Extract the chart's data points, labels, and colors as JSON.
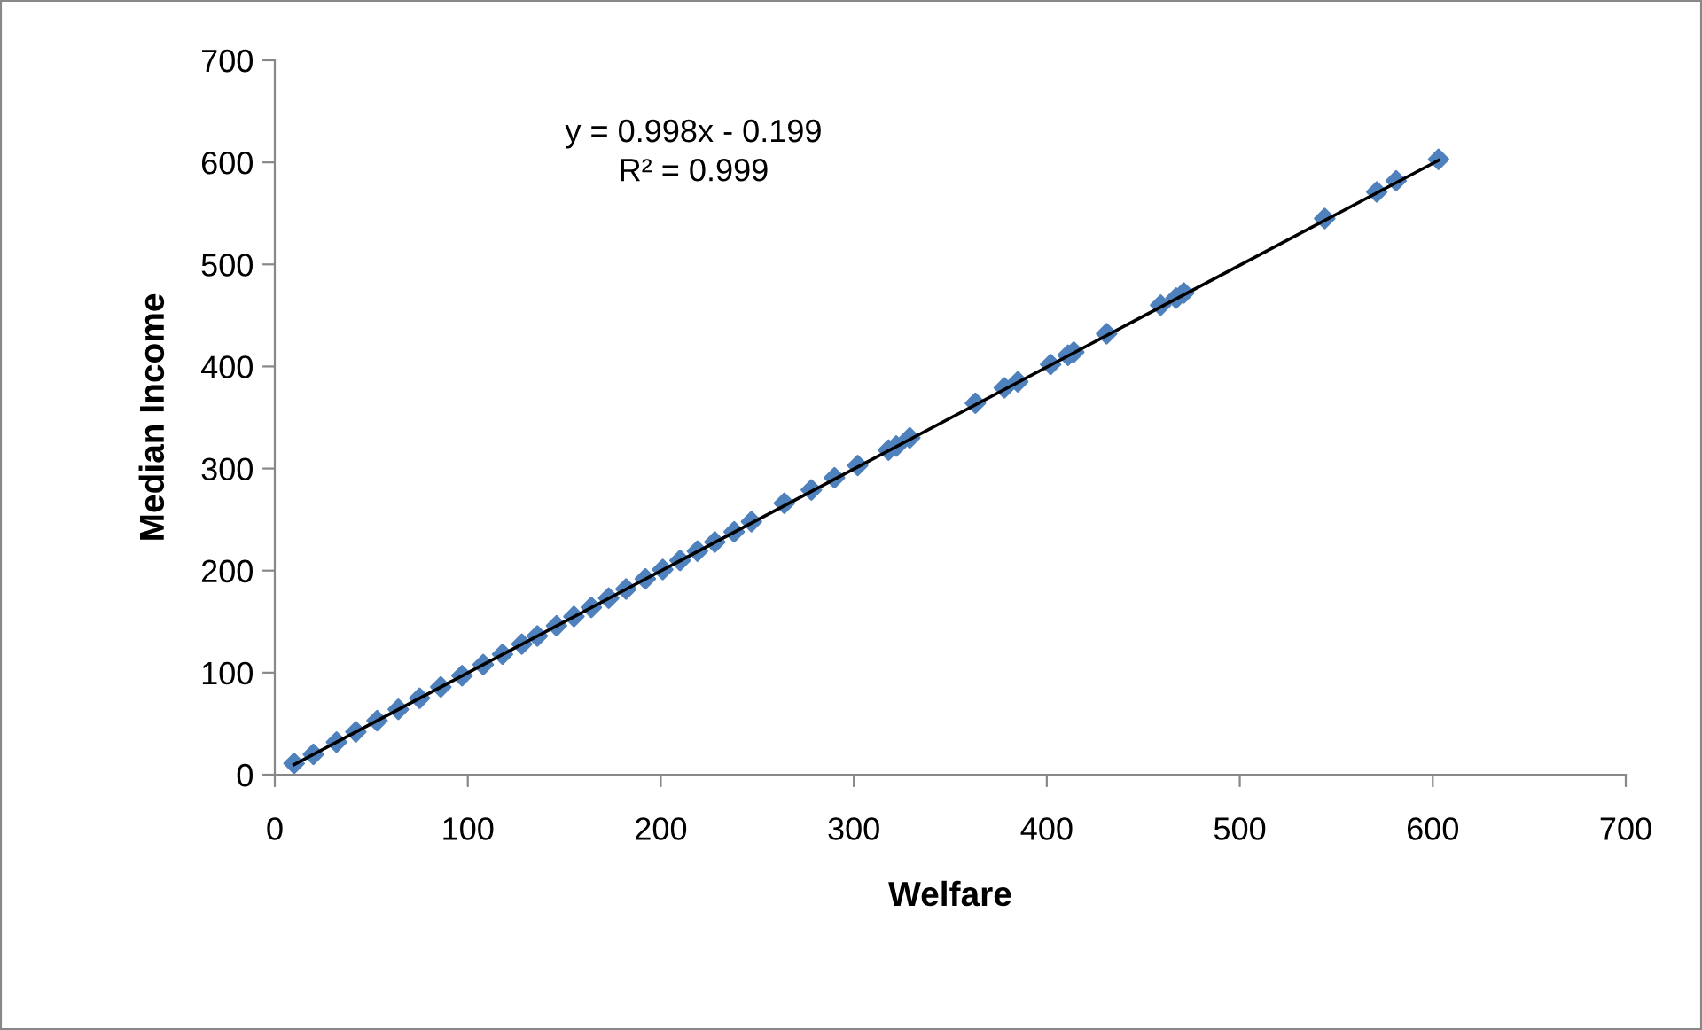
{
  "chart_data": {
    "type": "scatter",
    "xlabel": "Welfare",
    "ylabel": "Median Income",
    "xlim": [
      0,
      700
    ],
    "ylim": [
      0,
      700
    ],
    "xticks": [
      0,
      100,
      200,
      300,
      400,
      500,
      600,
      700
    ],
    "yticks": [
      0,
      100,
      200,
      300,
      400,
      500,
      600,
      700
    ],
    "grid": false,
    "legend": false,
    "marker": "diamond",
    "annotations": [
      "y = 0.998x - 0.199\nR² = 0.999"
    ],
    "series": [
      {
        "color": "#4f81bd",
        "x": [
          10,
          20,
          32,
          42,
          53,
          64,
          75,
          86,
          97,
          108,
          118,
          128,
          136,
          146,
          155,
          164,
          173,
          182,
          192,
          201,
          210,
          219,
          228,
          238,
          247,
          264,
          278,
          290,
          302,
          318,
          322,
          329,
          363,
          378,
          385,
          402,
          411,
          414,
          431,
          459,
          467,
          471,
          544,
          571,
          581,
          603
        ],
        "values": [
          11,
          20,
          32,
          42,
          53,
          64,
          75,
          86,
          97,
          108,
          118,
          128,
          136,
          146,
          155,
          164,
          173,
          182,
          192,
          201,
          210,
          219,
          228,
          238,
          248,
          266,
          279,
          291,
          303,
          318,
          322,
          330,
          364,
          379,
          385,
          402,
          411,
          414,
          432,
          460,
          467,
          472,
          545,
          571,
          582,
          603
        ]
      },
      {
        "type": "line",
        "marker": "none",
        "color": "#000000",
        "x": [
          10,
          603
        ],
        "values": [
          10,
          602
        ]
      }
    ]
  }
}
